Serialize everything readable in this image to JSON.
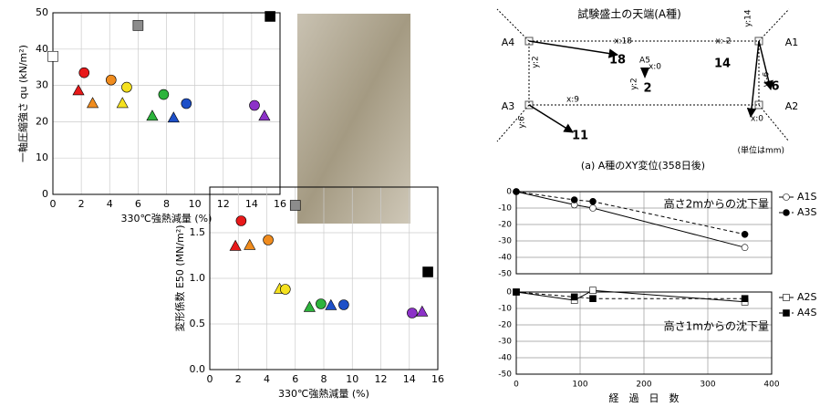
{
  "chart_data": [
    {
      "type": "scatter",
      "y_label": "一軸圧縮強さ qu (kN/m²)",
      "x_label": "330℃強熱減量 (%)",
      "x": [
        0,
        2.2,
        1.8,
        2.8,
        4.1,
        5.2,
        4.9,
        6,
        7.8,
        7,
        8.5,
        9.4,
        14.2,
        14.9,
        15.3
      ],
      "values": [
        38,
        33.5,
        28.5,
        25,
        31.5,
        29.5,
        25,
        46.5,
        27.5,
        21.5,
        21,
        25,
        24.5,
        21.5,
        49
      ],
      "markers": [
        "square",
        "circle",
        "triangle",
        "triangle",
        "circle",
        "circle",
        "triangle",
        "square",
        "circle",
        "triangle",
        "triangle",
        "circle",
        "circle",
        "triangle",
        "square"
      ],
      "colors": [
        "#ffffff",
        "#e8191a",
        "#e8191a",
        "#f08c1e",
        "#f08c1e",
        "#f5e11e",
        "#f5e11e",
        "#8c8c8c",
        "#2db43c",
        "#2db43c",
        "#1e50c8",
        "#1e50c8",
        "#8c32c8",
        "#8c32c8",
        "#000000"
      ],
      "xlim": [
        0,
        16
      ],
      "xticks": [
        0,
        2,
        4,
        6,
        8,
        10,
        12,
        14,
        16
      ],
      "ylim": [
        0,
        50
      ],
      "yticks": [
        0,
        10,
        20,
        30,
        40,
        50
      ],
      "grid": true
    },
    {
      "type": "scatter",
      "y_label": "変形係数 E50 (MN/m²)",
      "x_label": "330℃強熱減量 (%)",
      "x": [
        2.2,
        1.8,
        2.8,
        4.1,
        4.9,
        5.3,
        6,
        7,
        7.8,
        8.5,
        9.4,
        14.2,
        14.9,
        15.3
      ],
      "values": [
        1.63,
        1.35,
        1.36,
        1.42,
        0.88,
        0.88,
        1.8,
        0.68,
        0.72,
        0.7,
        0.71,
        0.62,
        0.63,
        1.07
      ],
      "markers": [
        "circle",
        "triangle",
        "triangle",
        "circle",
        "triangle",
        "circle",
        "square",
        "triangle",
        "circle",
        "triangle",
        "circle",
        "circle",
        "triangle",
        "square"
      ],
      "colors": [
        "#e8191a",
        "#e8191a",
        "#f08c1e",
        "#f08c1e",
        "#f5e11e",
        "#f5e11e",
        "#8c8c8c",
        "#2db43c",
        "#2db43c",
        "#1e50c8",
        "#1e50c8",
        "#8c32c8",
        "#8c32c8",
        "#000000"
      ],
      "xlim": [
        0,
        16
      ],
      "xticks": [
        0,
        2,
        4,
        6,
        8,
        10,
        12,
        14,
        16
      ],
      "ylim": [
        0,
        2
      ],
      "yticks": [
        {
          "value": 0,
          "label": "0.0"
        },
        {
          "value": 0.5,
          "label": "0.5"
        },
        {
          "value": 1,
          "label": "1.0"
        },
        {
          "value": 1.5,
          "label": "1.5"
        }
      ],
      "grid": true
    },
    {
      "type": "line",
      "annotation": "高さ2mからの沈下量",
      "x": [
        0,
        91,
        120,
        358
      ],
      "series": [
        {
          "name": "A1S",
          "color": "#000000",
          "marker": "circle",
          "marker_fill": "#ffffff",
          "dash": false,
          "values": [
            0,
            -8,
            -10,
            -34
          ]
        },
        {
          "name": "A3S",
          "color": "#000000",
          "marker": "circle",
          "marker_fill": "#000000",
          "dash": true,
          "values": [
            0,
            -5,
            -6,
            -26
          ]
        }
      ],
      "xlim": [
        0,
        400
      ],
      "xticks": [
        0,
        100,
        200,
        300,
        400
      ],
      "xtick_labels": false,
      "ylim": [
        -50,
        0
      ],
      "yticks": [
        0,
        -10,
        -20,
        -30,
        -40,
        -50
      ],
      "grid": true
    },
    {
      "type": "line",
      "annotation": "高さ1mからの沈下量",
      "x_label": "経　過　日　数",
      "x": [
        0,
        91,
        120,
        358
      ],
      "series": [
        {
          "name": "A2S",
          "color": "#000000",
          "marker": "square",
          "marker_fill": "#ffffff",
          "dash": false,
          "values": [
            0,
            -5,
            1,
            -6
          ]
        },
        {
          "name": "A4S",
          "color": "#000000",
          "marker": "square",
          "marker_fill": "#000000",
          "dash": true,
          "values": [
            0,
            -3,
            -4,
            -4
          ]
        }
      ],
      "xlim": [
        0,
        400
      ],
      "xticks": [
        0,
        100,
        200,
        300,
        400
      ],
      "xtick_labels": true,
      "ylim": [
        -50,
        0
      ],
      "yticks": [
        0,
        -10,
        -20,
        -30,
        -40,
        -50
      ],
      "grid": true
    }
  ],
  "diagram": {
    "title": "試験盛土の天端(A種)",
    "points": [
      "A1",
      "A2",
      "A3",
      "A4",
      "A5"
    ],
    "labels": [
      "x:18",
      "y:2",
      "18",
      "x:-2",
      "y:14",
      "14",
      "y:-6",
      "6",
      "x:0",
      "x:0",
      "y:2",
      "2",
      "x:9",
      "y:6",
      "11"
    ],
    "unit": "(単位はmm)",
    "caption": "(a) A種のXY変位(358日後)"
  }
}
